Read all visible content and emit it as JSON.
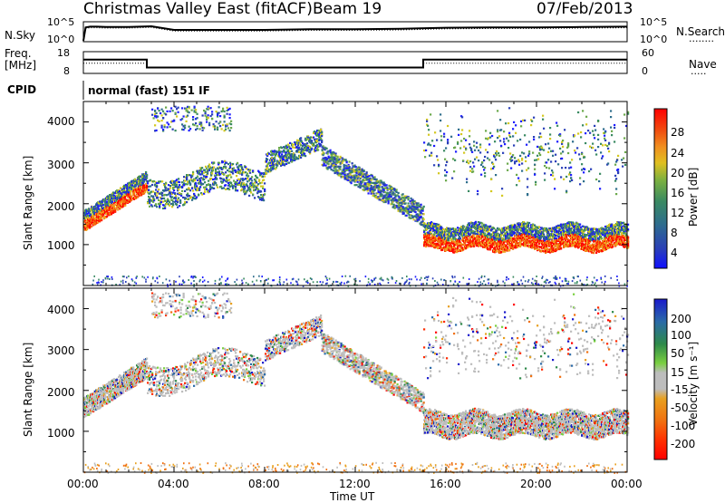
{
  "header": {
    "station": "Christmas Valley East (fitACF)",
    "beam": "Beam 19",
    "date": "07/Feb/2013"
  },
  "nsky": {
    "label": "N.Sky",
    "ticks": [
      "10^5",
      "10^0"
    ],
    "right_ticks": [
      "10^5",
      "10^0"
    ],
    "right_label": "N.Search",
    "legend_dots": "........"
  },
  "freq": {
    "label_line1": "Freq.",
    "label_line2": "[MHz]",
    "ticks": [
      "18",
      "8"
    ],
    "right_ticks": [
      "60",
      "0"
    ],
    "right_label": "Nave",
    "legend_dots": "....."
  },
  "cpid": {
    "label": "CPID",
    "text": "normal (fast) 151 IF"
  },
  "xaxis": {
    "label": "Time UT",
    "ticks": [
      "00:00",
      "04:00",
      "08:00",
      "12:00",
      "16:00",
      "20:00",
      "00:00"
    ]
  },
  "power_panel": {
    "ylabel": "Slant Range [km]",
    "yticks": [
      "4000",
      "3000",
      "2000",
      "1000"
    ],
    "colorbar_label": "Power [dB]",
    "colorbar_ticks": [
      "28",
      "24",
      "20",
      "16",
      "12",
      "8",
      "4"
    ],
    "colors": [
      "#1c1cff",
      "#2a3fb8",
      "#2e6e8c",
      "#3a8a62",
      "#6aa84a",
      "#d4c820",
      "#f0a020",
      "#f07010",
      "#ff2a00",
      "#ff0000"
    ]
  },
  "velocity_panel": {
    "ylabel": "Slant Range [km]",
    "yticks": [
      "4000",
      "3000",
      "2000",
      "1000"
    ],
    "colorbar_label": "Velocity [m s⁻¹]",
    "colorbar_ticks": [
      "200",
      "100",
      "50",
      "15",
      "-15",
      "-50",
      "-100",
      "-200"
    ],
    "colors": [
      "#1a1acc",
      "#2a6aa8",
      "#2e8a4a",
      "#7ad040",
      "#bdbdbd",
      "#e8a020",
      "#f07010",
      "#ff2a00",
      "#ff0000"
    ]
  },
  "chart_data": [
    {
      "type": "line",
      "name": "nsky",
      "x_hours": [
        0,
        0.1,
        0.3,
        0.6,
        1.0,
        2.0,
        3.0,
        3.5,
        4.0,
        6.0,
        8.0,
        10.0,
        12.0,
        14.0,
        16.0,
        18.0,
        20.0,
        22.0,
        24.0
      ],
      "log10_values": [
        0,
        3.7,
        3.9,
        3.9,
        3.8,
        3.8,
        4.0,
        3.5,
        3.0,
        3.0,
        3.0,
        3.2,
        3.2,
        3.3,
        3.6,
        3.7,
        3.7,
        3.8,
        3.9
      ],
      "ylim_log10": [
        0,
        5
      ]
    },
    {
      "type": "line",
      "name": "frequency_mhz",
      "x_hours": [
        0,
        2.8,
        2.8,
        15.0,
        15.0,
        24.0
      ],
      "values": [
        14.5,
        14.5,
        10.5,
        10.5,
        14.5,
        14.5
      ],
      "ylim": [
        8,
        18
      ]
    },
    {
      "type": "line",
      "name": "nave",
      "x_hours": [
        0,
        2.8,
        2.8,
        15.0,
        15.0,
        24.0
      ],
      "values": [
        28,
        28,
        16,
        16,
        28,
        28
      ],
      "ylim": [
        0,
        60
      ]
    }
  ]
}
